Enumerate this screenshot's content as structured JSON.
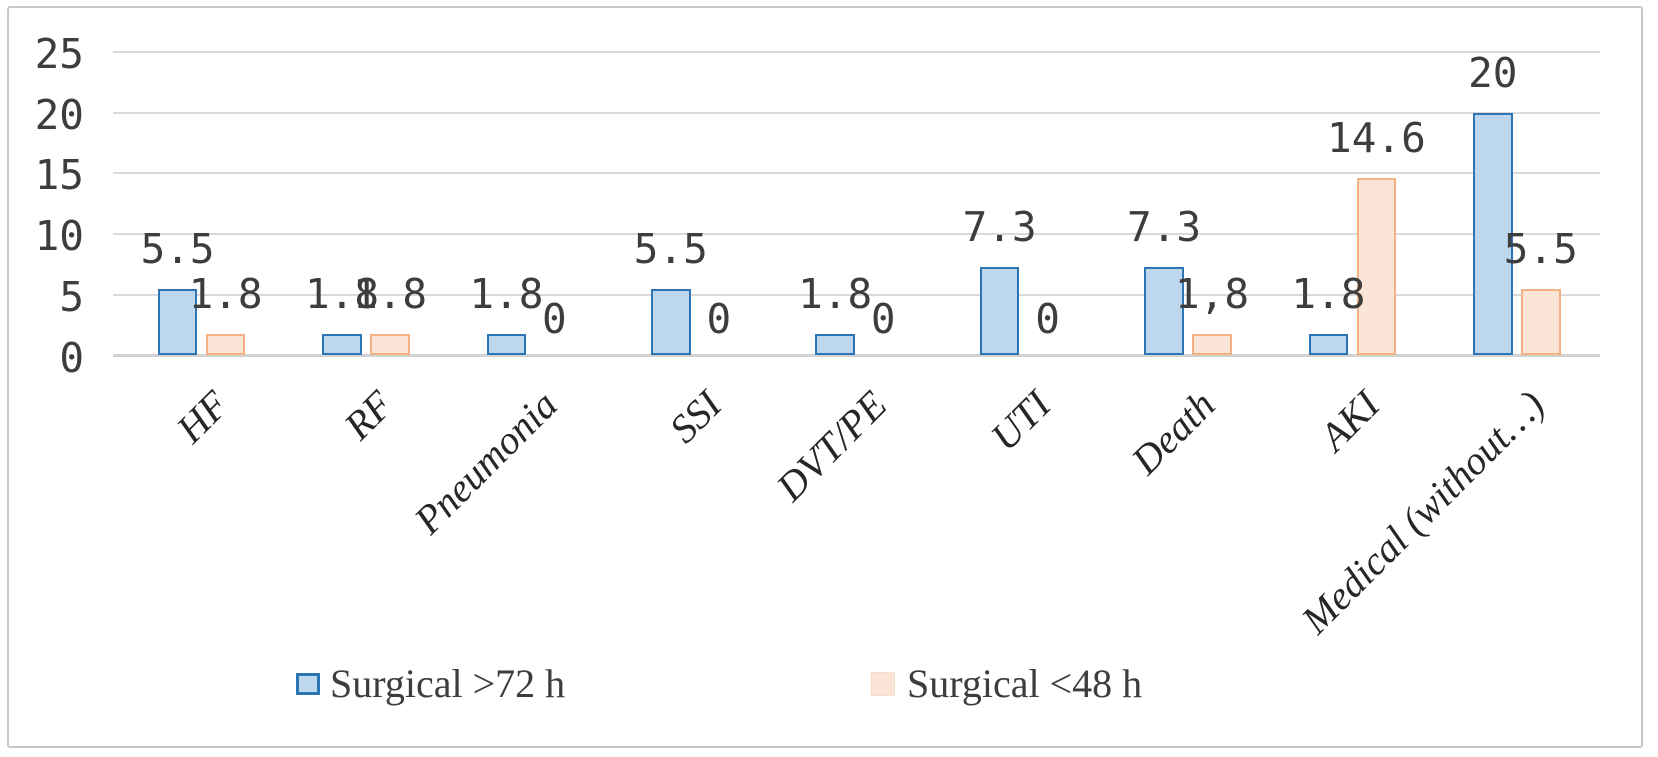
{
  "chart_data": {
    "type": "bar",
    "title": "",
    "xlabel": "",
    "ylabel": "",
    "categories": [
      "HF",
      "RF",
      "Pneumonia",
      "SSI",
      "DVT/PE",
      "UTI",
      "Death",
      "AKI",
      "Medical (without…)"
    ],
    "series": [
      {
        "name": "Surgical >72 h",
        "values": [
          5.5,
          1.8,
          1.8,
          5.5,
          1.8,
          7.3,
          7.3,
          1.8,
          20
        ],
        "data_labels": [
          "5.5",
          "1.8",
          "1.8",
          "5.5",
          "1.8",
          "7.3",
          "7.3",
          "1.8",
          "20"
        ],
        "fill_color": "#BDD7EE",
        "border_color": "#2E75B6"
      },
      {
        "name": "Surgical <48 h",
        "values": [
          1.8,
          1.8,
          0,
          0,
          0,
          0,
          1.8,
          14.6,
          5.5
        ],
        "data_labels": [
          "1.8",
          "1.8",
          "0",
          "0",
          "0",
          "0",
          "1,8",
          "14.6",
          "5.5"
        ],
        "fill_color": "#FBE5D6",
        "border_color": "#F4B183"
      }
    ],
    "ylim": [
      0,
      25
    ],
    "yticks": [
      0,
      5,
      10,
      15,
      20,
      25
    ],
    "grid": true,
    "legend_position": "bottom"
  },
  "legend": {
    "items": [
      {
        "label": "Surgical >72 h",
        "swatch_fill": "#BDD7EE",
        "swatch_border": "#2E75B6"
      },
      {
        "label": "Surgical <48 h",
        "swatch_fill": "#FBE5D6",
        "swatch_border": "#F7DEC9"
      }
    ]
  },
  "colors": {
    "gridline": "#D9D9D9",
    "axis_line": "#D2D2D2",
    "number_text": "#3D3D3D",
    "category_text": "#262626",
    "legend_text": "#3D3D3D",
    "frame_border": "#C8C8C8",
    "background": "#FFFFFF"
  }
}
